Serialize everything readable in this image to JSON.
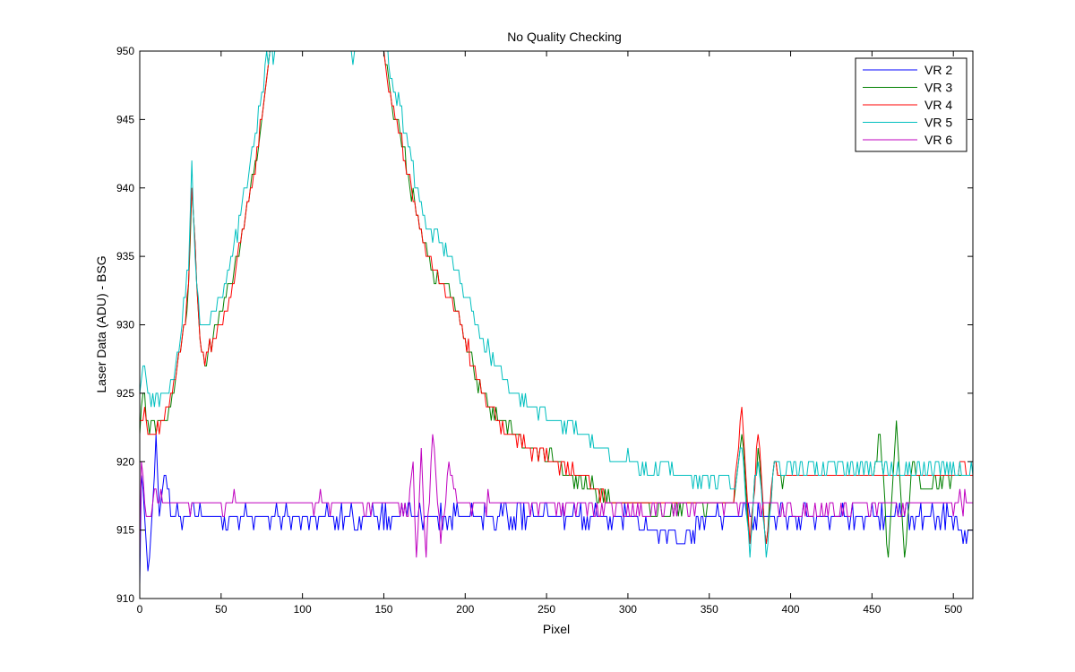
{
  "chart_data": {
    "type": "line",
    "title": "No Quality Checking",
    "xlabel": "Pixel",
    "ylabel": "Laser Data (ADU) - BSG",
    "xlim": [
      0,
      512
    ],
    "ylim": [
      910,
      950
    ],
    "xticks": [
      0,
      50,
      100,
      150,
      200,
      250,
      300,
      350,
      400,
      450,
      500
    ],
    "yticks": [
      910,
      915,
      920,
      925,
      930,
      935,
      940,
      945,
      950
    ],
    "grid": false,
    "legend_position": "top-right",
    "series": [
      {
        "name": "VR  2",
        "color": "#0000ff",
        "noise": 0.7,
        "points": [
          [
            0,
            910
          ],
          [
            1,
            919
          ],
          [
            3,
            916
          ],
          [
            5,
            912
          ],
          [
            8,
            917
          ],
          [
            10,
            922
          ],
          [
            12,
            916
          ],
          [
            15,
            919
          ],
          [
            20,
            916
          ],
          [
            40,
            916
          ],
          [
            80,
            916
          ],
          [
            120,
            916
          ],
          [
            160,
            916
          ],
          [
            200,
            916
          ],
          [
            250,
            916
          ],
          [
            300,
            916
          ],
          [
            332,
            914
          ],
          [
            350,
            916
          ],
          [
            380,
            916
          ],
          [
            420,
            916
          ],
          [
            470,
            916
          ],
          [
            500,
            916
          ],
          [
            505,
            915
          ],
          [
            512,
            915
          ]
        ]
      },
      {
        "name": "VR  3",
        "color": "#008000",
        "noise": 0.5,
        "points": [
          [
            0,
            922
          ],
          [
            2,
            925
          ],
          [
            5,
            923
          ],
          [
            10,
            922.5
          ],
          [
            15,
            923
          ],
          [
            20,
            925
          ],
          [
            25,
            928
          ],
          [
            28,
            930
          ],
          [
            30,
            933
          ],
          [
            32,
            940
          ],
          [
            35,
            933
          ],
          [
            38,
            928
          ],
          [
            40,
            927
          ],
          [
            45,
            929
          ],
          [
            50,
            931
          ],
          [
            55,
            933
          ],
          [
            60,
            935
          ],
          [
            65,
            938
          ],
          [
            70,
            941
          ],
          [
            75,
            945
          ],
          [
            80,
            950
          ],
          [
            150,
            950
          ],
          [
            152,
            949
          ],
          [
            155,
            946
          ],
          [
            160,
            944
          ],
          [
            165,
            941
          ],
          [
            170,
            938
          ],
          [
            175,
            936
          ],
          [
            180,
            934
          ],
          [
            185,
            933
          ],
          [
            190,
            933
          ],
          [
            195,
            931
          ],
          [
            200,
            929
          ],
          [
            205,
            927
          ],
          [
            210,
            925
          ],
          [
            215,
            924
          ],
          [
            220,
            923
          ],
          [
            230,
            922
          ],
          [
            240,
            921
          ],
          [
            250,
            920.5
          ],
          [
            260,
            919.5
          ],
          [
            270,
            918.5
          ],
          [
            280,
            918
          ],
          [
            290,
            917
          ],
          [
            300,
            917
          ],
          [
            320,
            916.5
          ],
          [
            360,
            917
          ],
          [
            365,
            917
          ],
          [
            370,
            922
          ],
          [
            375,
            914
          ],
          [
            380,
            921
          ],
          [
            385,
            914
          ],
          [
            390,
            920
          ],
          [
            395,
            918
          ],
          [
            400,
            919
          ],
          [
            420,
            919
          ],
          [
            440,
            919
          ],
          [
            450,
            919
          ],
          [
            455,
            922
          ],
          [
            460,
            913
          ],
          [
            465,
            923
          ],
          [
            470,
            913
          ],
          [
            475,
            920
          ],
          [
            480,
            918
          ],
          [
            500,
            919
          ],
          [
            512,
            919
          ]
        ]
      },
      {
        "name": "VR  4",
        "color": "#ff0000",
        "noise": 0.5,
        "points": [
          [
            0,
            923
          ],
          [
            3,
            924
          ],
          [
            5,
            922.5
          ],
          [
            10,
            922
          ],
          [
            15,
            923
          ],
          [
            20,
            925
          ],
          [
            25,
            928
          ],
          [
            28,
            930
          ],
          [
            30,
            933
          ],
          [
            32,
            940
          ],
          [
            35,
            933
          ],
          [
            38,
            928
          ],
          [
            40,
            927
          ],
          [
            45,
            929
          ],
          [
            50,
            930
          ],
          [
            55,
            932
          ],
          [
            60,
            935
          ],
          [
            65,
            938
          ],
          [
            70,
            941
          ],
          [
            75,
            945
          ],
          [
            80,
            950
          ],
          [
            150,
            950
          ],
          [
            152,
            948
          ],
          [
            155,
            946
          ],
          [
            160,
            944
          ],
          [
            165,
            941
          ],
          [
            170,
            938
          ],
          [
            175,
            936
          ],
          [
            180,
            934
          ],
          [
            185,
            933
          ],
          [
            190,
            932
          ],
          [
            195,
            931
          ],
          [
            200,
            929
          ],
          [
            205,
            927
          ],
          [
            210,
            925
          ],
          [
            215,
            924
          ],
          [
            220,
            923
          ],
          [
            230,
            922
          ],
          [
            240,
            921
          ],
          [
            250,
            920.5
          ],
          [
            260,
            919.5
          ],
          [
            270,
            919
          ],
          [
            280,
            918
          ],
          [
            290,
            917
          ],
          [
            300,
            917
          ],
          [
            320,
            917
          ],
          [
            360,
            917
          ],
          [
            365,
            917
          ],
          [
            370,
            924
          ],
          [
            375,
            914
          ],
          [
            380,
            922
          ],
          [
            385,
            914
          ],
          [
            390,
            920
          ],
          [
            395,
            919
          ],
          [
            400,
            919
          ],
          [
            420,
            919
          ],
          [
            440,
            919
          ],
          [
            450,
            919
          ],
          [
            470,
            919
          ],
          [
            500,
            919
          ],
          [
            505,
            920
          ],
          [
            512,
            919
          ]
        ]
      },
      {
        "name": "VR  5",
        "color": "#00bfbf",
        "noise": 0.6,
        "points": [
          [
            0,
            925
          ],
          [
            2,
            927
          ],
          [
            5,
            925
          ],
          [
            10,
            924.5
          ],
          [
            15,
            925
          ],
          [
            20,
            926
          ],
          [
            25,
            929
          ],
          [
            28,
            932
          ],
          [
            30,
            935
          ],
          [
            32,
            942
          ],
          [
            34,
            935
          ],
          [
            37,
            930
          ],
          [
            40,
            930
          ],
          [
            45,
            931
          ],
          [
            50,
            932.5
          ],
          [
            55,
            934
          ],
          [
            60,
            937
          ],
          [
            65,
            940
          ],
          [
            70,
            943
          ],
          [
            75,
            947
          ],
          [
            78,
            950
          ],
          [
            152,
            950
          ],
          [
            154,
            948
          ],
          [
            157,
            947
          ],
          [
            160,
            946
          ],
          [
            165,
            943
          ],
          [
            170,
            940
          ],
          [
            175,
            938
          ],
          [
            180,
            937
          ],
          [
            185,
            936
          ],
          [
            190,
            935
          ],
          [
            195,
            934
          ],
          [
            200,
            932
          ],
          [
            205,
            931
          ],
          [
            210,
            929
          ],
          [
            215,
            928
          ],
          [
            220,
            927
          ],
          [
            225,
            926
          ],
          [
            230,
            925
          ],
          [
            240,
            924
          ],
          [
            250,
            923.5
          ],
          [
            260,
            923
          ],
          [
            270,
            922.5
          ],
          [
            280,
            921.5
          ],
          [
            290,
            920.5
          ],
          [
            300,
            920
          ],
          [
            320,
            919.5
          ],
          [
            340,
            919
          ],
          [
            360,
            918.5
          ],
          [
            365,
            918.5
          ],
          [
            370,
            921
          ],
          [
            375,
            914
          ],
          [
            380,
            921
          ],
          [
            385,
            913
          ],
          [
            390,
            920
          ],
          [
            395,
            919
          ],
          [
            400,
            919.5
          ],
          [
            420,
            919.5
          ],
          [
            440,
            919.5
          ],
          [
            460,
            919.5
          ],
          [
            480,
            919.5
          ],
          [
            500,
            919.5
          ],
          [
            512,
            919.5
          ]
        ]
      },
      {
        "name": "VR  6",
        "color": "#bf00bf",
        "noise": 0.55,
        "points": [
          [
            0,
            914
          ],
          [
            1,
            920
          ],
          [
            3,
            917
          ],
          [
            5,
            916
          ],
          [
            10,
            917.5
          ],
          [
            20,
            917
          ],
          [
            40,
            917
          ],
          [
            80,
            917
          ],
          [
            120,
            917
          ],
          [
            150,
            917
          ],
          [
            160,
            917
          ],
          [
            165,
            916
          ],
          [
            168,
            920
          ],
          [
            170,
            913
          ],
          [
            173,
            921
          ],
          [
            176,
            913
          ],
          [
            180,
            922
          ],
          [
            185,
            914
          ],
          [
            190,
            920
          ],
          [
            195,
            917
          ],
          [
            200,
            917
          ],
          [
            240,
            917
          ],
          [
            280,
            916.5
          ],
          [
            320,
            916.5
          ],
          [
            360,
            917
          ],
          [
            380,
            917
          ],
          [
            400,
            916.5
          ],
          [
            440,
            916.5
          ],
          [
            480,
            917
          ],
          [
            500,
            917
          ],
          [
            512,
            917
          ]
        ]
      }
    ]
  }
}
